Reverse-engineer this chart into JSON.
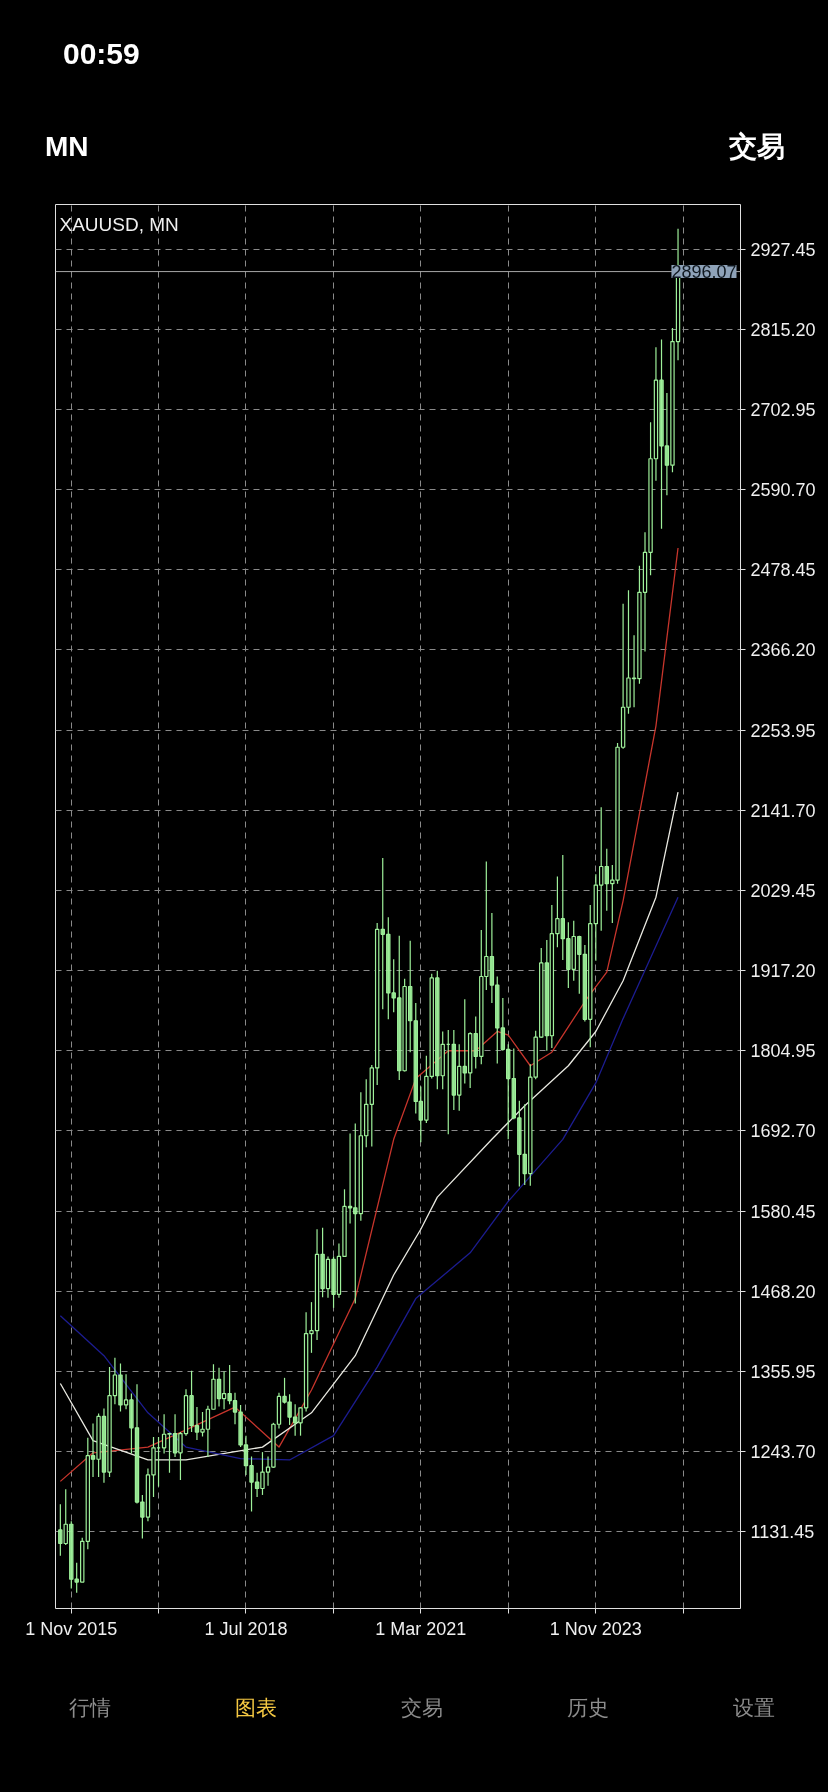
{
  "chart_data": {
    "type": "candlestick",
    "title": "XAUUSD, MN",
    "annotations": [
      "00:59",
      "MN",
      "交易",
      "行情",
      "图表",
      "交易",
      "历史",
      "设置"
    ],
    "color": "#9ef09a",
    "x": [
      "2015-09",
      "2015-10",
      "2015-11",
      "2015-12",
      "2016-01",
      "2016-02",
      "2016-03",
      "2016-04",
      "2016-05",
      "2016-06",
      "2016-07",
      "2016-08",
      "2016-09",
      "2016-10",
      "2016-11",
      "2016-12",
      "2017-01",
      "2017-02",
      "2017-03",
      "2017-04",
      "2017-05",
      "2017-06",
      "2017-07",
      "2017-08",
      "2017-09",
      "2017-10",
      "2017-11",
      "2017-12",
      "2018-01",
      "2018-02",
      "2018-03",
      "2018-04",
      "2018-05",
      "2018-06",
      "2018-07",
      "2018-08",
      "2018-09",
      "2018-10",
      "2018-11",
      "2018-12",
      "2019-01",
      "2019-02",
      "2019-03",
      "2019-04",
      "2019-05",
      "2019-06",
      "2019-07",
      "2019-08",
      "2019-09",
      "2019-10",
      "2019-11",
      "2019-12",
      "2020-01",
      "2020-02",
      "2020-03",
      "2020-04",
      "2020-05",
      "2020-06",
      "2020-07",
      "2020-08",
      "2020-09",
      "2020-10",
      "2020-11",
      "2020-12",
      "2021-01",
      "2021-02",
      "2021-03",
      "2021-04",
      "2021-05",
      "2021-06",
      "2021-07",
      "2021-08",
      "2021-09",
      "2021-10",
      "2021-11",
      "2021-12",
      "2022-01",
      "2022-02",
      "2022-03",
      "2022-04",
      "2022-05",
      "2022-06",
      "2022-07",
      "2022-08",
      "2022-09",
      "2022-10",
      "2022-11",
      "2022-12",
      "2023-01",
      "2023-02",
      "2023-03",
      "2023-04",
      "2023-05",
      "2023-06",
      "2023-07",
      "2023-08",
      "2023-09",
      "2023-10",
      "2023-11",
      "2023-12",
      "2024-01",
      "2024-02",
      "2024-03",
      "2024-04",
      "2024-05",
      "2024-06",
      "2024-07",
      "2024-08",
      "2024-09",
      "2024-10",
      "2024-11",
      "2024-12",
      "2025-01",
      "2025-02"
    ],
    "ohlc": [
      [
        1134,
        1170,
        1098,
        1115
      ],
      [
        1115,
        1191,
        1113,
        1142
      ],
      [
        1142,
        1146,
        1052,
        1065
      ],
      [
        1065,
        1088,
        1046,
        1061
      ],
      [
        1061,
        1123,
        1061,
        1118
      ],
      [
        1118,
        1263,
        1107,
        1238
      ],
      [
        1238,
        1283,
        1208,
        1233
      ],
      [
        1233,
        1297,
        1208,
        1293
      ],
      [
        1293,
        1304,
        1200,
        1215
      ],
      [
        1215,
        1362,
        1208,
        1322
      ],
      [
        1322,
        1375,
        1310,
        1351
      ],
      [
        1351,
        1367,
        1300,
        1309
      ],
      [
        1309,
        1352,
        1303,
        1316
      ],
      [
        1316,
        1325,
        1241,
        1277
      ],
      [
        1277,
        1338,
        1171,
        1173
      ],
      [
        1173,
        1183,
        1122,
        1152
      ],
      [
        1152,
        1220,
        1146,
        1211
      ],
      [
        1211,
        1264,
        1180,
        1249
      ],
      [
        1249,
        1264,
        1195,
        1249
      ],
      [
        1249,
        1296,
        1241,
        1268
      ],
      [
        1268,
        1270,
        1214,
        1269
      ],
      [
        1269,
        1296,
        1236,
        1242
      ],
      [
        1242,
        1271,
        1204,
        1269
      ],
      [
        1269,
        1331,
        1266,
        1322
      ],
      [
        1322,
        1357,
        1271,
        1280
      ],
      [
        1280,
        1306,
        1260,
        1271
      ],
      [
        1271,
        1299,
        1265,
        1275
      ],
      [
        1275,
        1308,
        1236,
        1303
      ],
      [
        1303,
        1366,
        1303,
        1345
      ],
      [
        1345,
        1361,
        1307,
        1318
      ],
      [
        1318,
        1356,
        1303,
        1325
      ],
      [
        1325,
        1365,
        1310,
        1315
      ],
      [
        1315,
        1326,
        1282,
        1299
      ],
      [
        1299,
        1309,
        1250,
        1253
      ],
      [
        1253,
        1266,
        1211,
        1224
      ],
      [
        1224,
        1237,
        1160,
        1201
      ],
      [
        1201,
        1214,
        1180,
        1192
      ],
      [
        1192,
        1243,
        1183,
        1215
      ],
      [
        1215,
        1237,
        1196,
        1222
      ],
      [
        1222,
        1284,
        1221,
        1282
      ],
      [
        1282,
        1326,
        1276,
        1321
      ],
      [
        1321,
        1347,
        1311,
        1313
      ],
      [
        1313,
        1324,
        1281,
        1292
      ],
      [
        1292,
        1310,
        1266,
        1284
      ],
      [
        1284,
        1306,
        1266,
        1305
      ],
      [
        1305,
        1439,
        1300,
        1409
      ],
      [
        1409,
        1453,
        1382,
        1413
      ],
      [
        1413,
        1555,
        1400,
        1520
      ],
      [
        1520,
        1557,
        1460,
        1472
      ],
      [
        1472,
        1517,
        1459,
        1513
      ],
      [
        1513,
        1517,
        1445,
        1464
      ],
      [
        1464,
        1535,
        1459,
        1517
      ],
      [
        1517,
        1611,
        1517,
        1587
      ],
      [
        1587,
        1689,
        1563,
        1585
      ],
      [
        1585,
        1703,
        1451,
        1577
      ],
      [
        1577,
        1747,
        1567,
        1686
      ],
      [
        1686,
        1765,
        1670,
        1730
      ],
      [
        1730,
        1785,
        1671,
        1781
      ],
      [
        1781,
        1984,
        1757,
        1975
      ],
      [
        1975,
        2075,
        1863,
        1968
      ],
      [
        1968,
        1992,
        1849,
        1886
      ],
      [
        1886,
        1933,
        1859,
        1879
      ],
      [
        1879,
        1966,
        1764,
        1777
      ],
      [
        1777,
        1906,
        1776,
        1895
      ],
      [
        1895,
        1959,
        1803,
        1847
      ],
      [
        1847,
        1872,
        1717,
        1734
      ],
      [
        1734,
        1755,
        1677,
        1708
      ],
      [
        1708,
        1798,
        1704,
        1769
      ],
      [
        1769,
        1913,
        1766,
        1907
      ],
      [
        1907,
        1917,
        1751,
        1770
      ],
      [
        1770,
        1832,
        1751,
        1814
      ],
      [
        1814,
        1834,
        1688,
        1814
      ],
      [
        1814,
        1834,
        1722,
        1743
      ],
      [
        1743,
        1814,
        1721,
        1783
      ],
      [
        1783,
        1877,
        1759,
        1774
      ],
      [
        1774,
        1831,
        1753,
        1829
      ],
      [
        1829,
        1853,
        1780,
        1797
      ],
      [
        1797,
        1974,
        1786,
        1909
      ],
      [
        1909,
        2070,
        1890,
        1937
      ],
      [
        1937,
        1998,
        1872,
        1897
      ],
      [
        1897,
        1909,
        1787,
        1837
      ],
      [
        1837,
        1879,
        1805,
        1807
      ],
      [
        1807,
        1814,
        1681,
        1766
      ],
      [
        1766,
        1808,
        1709,
        1711
      ],
      [
        1711,
        1735,
        1615,
        1660
      ],
      [
        1660,
        1730,
        1617,
        1633
      ],
      [
        1633,
        1786,
        1616,
        1768
      ],
      [
        1768,
        1833,
        1765,
        1824
      ],
      [
        1824,
        1949,
        1823,
        1928
      ],
      [
        1928,
        1960,
        1805,
        1826
      ],
      [
        1826,
        2009,
        1809,
        1969
      ],
      [
        1969,
        2049,
        1950,
        1990
      ],
      [
        1990,
        2079,
        1932,
        1962
      ],
      [
        1962,
        1985,
        1893,
        1919
      ],
      [
        1919,
        1987,
        1903,
        1965
      ],
      [
        1965,
        1966,
        1885,
        1940
      ],
      [
        1940,
        1953,
        1846,
        1849
      ],
      [
        1849,
        2009,
        1810,
        1983
      ],
      [
        1983,
        2052,
        1931,
        2037
      ],
      [
        2037,
        2146,
        1973,
        2063
      ],
      [
        2063,
        2088,
        2001,
        2039
      ],
      [
        2039,
        2065,
        1984,
        2044
      ],
      [
        2044,
        2236,
        2039,
        2230
      ],
      [
        2230,
        2431,
        2228,
        2286
      ],
      [
        2286,
        2450,
        2277,
        2327
      ],
      [
        2327,
        2387,
        2286,
        2326
      ],
      [
        2326,
        2484,
        2319,
        2447
      ],
      [
        2447,
        2531,
        2364,
        2503
      ],
      [
        2503,
        2685,
        2471,
        2634
      ],
      [
        2634,
        2790,
        2603,
        2744
      ],
      [
        2744,
        2801,
        2536,
        2652
      ],
      [
        2652,
        2726,
        2583,
        2625
      ],
      [
        2625,
        2817,
        2615,
        2798
      ],
      [
        2798,
        2956,
        2772,
        2896
      ]
    ],
    "series": [
      {
        "type": "line",
        "color": "#c8352c",
        "x": [
          "2015-09",
          "2016-03",
          "2017-01",
          "2017-08",
          "2018-05",
          "2019-01",
          "2019-07",
          "2020-03",
          "2020-10",
          "2021-02",
          "2021-08",
          "2022-01",
          "2022-05",
          "2022-07",
          "2022-11",
          "2023-03",
          "2023-09",
          "2024-01",
          "2024-04",
          "2024-10",
          "2025-02"
        ],
        "values": [
          1202,
          1242,
          1250,
          1274,
          1306,
          1250,
          1330,
          1458,
          1681,
          1766,
          1805,
          1805,
          1832,
          1827,
          1784,
          1803,
          1874,
          1915,
          2015,
          2260,
          2509
        ]
      },
      {
        "type": "line",
        "color": "#e8e8e0",
        "x": [
          "2015-09",
          "2016-03",
          "2017-01",
          "2017-08",
          "2018-10",
          "2019-07",
          "2020-03",
          "2020-10",
          "2021-03",
          "2021-06",
          "2022-04",
          "2022-10",
          "2023-06",
          "2023-11",
          "2024-04",
          "2024-10",
          "2025-02"
        ],
        "values": [
          1339,
          1259,
          1232,
          1232,
          1250,
          1298,
          1378,
          1491,
          1555,
          1600,
          1681,
          1728,
          1784,
          1832,
          1903,
          2020,
          2167
        ]
      },
      {
        "type": "line",
        "color": "#1c1c90",
        "x": [
          "2015-09",
          "2016-05",
          "2017-01",
          "2017-08",
          "2018-06",
          "2019-03",
          "2019-11",
          "2020-07",
          "2021-02",
          "2021-12",
          "2022-07",
          "2023-05",
          "2023-11",
          "2024-04",
          "2025-02"
        ],
        "values": [
          1434,
          1378,
          1298,
          1250,
          1234,
          1232,
          1266,
          1362,
          1458,
          1522,
          1594,
          1681,
          1760,
          1850,
          2020
        ]
      }
    ],
    "xlim": [
      "2015-08-05",
      "2026-01-15"
    ],
    "xticks": [
      {
        "value": "2015-11-01",
        "label": "1 Nov 2015"
      },
      {
        "value": "2017-03-01",
        "label": null
      },
      {
        "value": "2018-07-01",
        "label": "1 Jul 2018"
      },
      {
        "value": "2019-11-01",
        "label": null
      },
      {
        "value": "2021-03-01",
        "label": "1 Mar 2021"
      },
      {
        "value": "2022-07-01",
        "label": null
      },
      {
        "value": "2023-11-01",
        "label": "1 Nov 2023"
      },
      {
        "value": "2025-03-01",
        "label": null
      }
    ],
    "ylim": [
      1024,
      2990
    ],
    "yticks": [
      1131.45,
      {
        "value": 1243.7,
        "label": "1243.70"
      },
      1355.95,
      {
        "value": 1468.2,
        "label": "1468.20"
      },
      1580.45,
      {
        "value": 1692.7,
        "label": "1692.70"
      },
      1804.95,
      {
        "value": 1917.2,
        "label": "1917.20"
      },
      2029.45,
      {
        "value": 2141.7,
        "label": "2141.70"
      },
      2253.95,
      {
        "value": 2366.2,
        "label": "2366.20"
      },
      2478.45,
      {
        "value": 2590.7,
        "label": "2590.70"
      },
      2702.95,
      {
        "value": 2815.2,
        "label": "2815.20"
      },
      2927.45
    ],
    "ref_lines": [
      {
        "axis": "y",
        "value": 2896.07,
        "label": "2896.07",
        "color": "#a8a8a8"
      }
    ],
    "grid": true
  }
}
